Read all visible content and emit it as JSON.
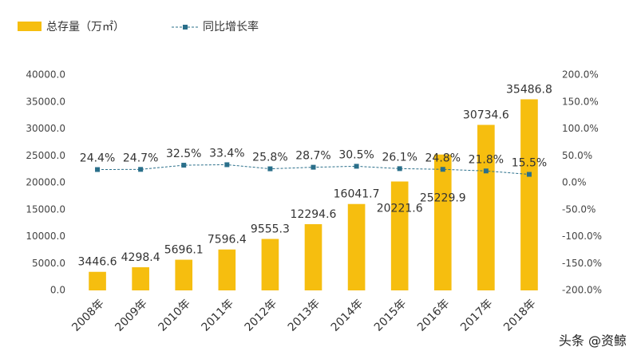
{
  "chart_data": {
    "type": "bar-line",
    "categories": [
      "2008年",
      "2009年",
      "2010年",
      "2011年",
      "2012年",
      "2013年",
      "2014年",
      "2015年",
      "2016年",
      "2017年",
      "2018年"
    ],
    "series": [
      {
        "name": "总存量（万㎡）",
        "color": "#f6be0f",
        "type": "bar",
        "values": [
          3446.6,
          4298.4,
          5696.1,
          7596.4,
          9555.3,
          12294.6,
          16041.7,
          20221.6,
          25229.9,
          30734.6,
          35486.8
        ]
      },
      {
        "name": "同比增长率",
        "color": "#2a6f8a",
        "type": "line",
        "axis": "y2",
        "values": [
          24.4,
          24.7,
          32.5,
          33.4,
          25.8,
          28.7,
          30.5,
          26.1,
          24.8,
          21.8,
          15.5
        ],
        "value_labels": [
          "24.4%",
          "24.7%",
          "32.5%",
          "33.4%",
          "25.8%",
          "28.7%",
          "30.5%",
          "26.1%",
          "24.8%",
          "21.8%",
          "15.5%"
        ]
      }
    ],
    "ylim": [
      0,
      40000
    ],
    "yticks": [
      {
        "value": 0,
        "label": "0.0"
      },
      {
        "value": 5000,
        "label": "5000.0"
      },
      {
        "value": 10000,
        "label": "10000.0"
      },
      {
        "value": 15000,
        "label": "15000.0"
      },
      {
        "value": 20000,
        "label": "20000.0"
      },
      {
        "value": 25000,
        "label": "25000.0"
      },
      {
        "value": 30000,
        "label": "30000.0"
      },
      {
        "value": 35000,
        "label": "35000.0"
      },
      {
        "value": 40000,
        "label": "40000.0"
      }
    ],
    "y2lim": [
      -200,
      200
    ],
    "y2ticks": [
      {
        "value": -200,
        "label": "-200.0%"
      },
      {
        "value": -150,
        "label": "-150.0%"
      },
      {
        "value": -100,
        "label": "-100.0%"
      },
      {
        "value": -50,
        "label": "-50.0%"
      },
      {
        "value": 0,
        "label": "0.0%"
      },
      {
        "value": 50,
        "label": "50.0%"
      },
      {
        "value": 100,
        "label": "100.0%"
      },
      {
        "value": 150,
        "label": "150.0%"
      },
      {
        "value": 200,
        "label": "200.0%"
      }
    ],
    "legend": "top-left",
    "watermark": "头条 @资鲸"
  }
}
